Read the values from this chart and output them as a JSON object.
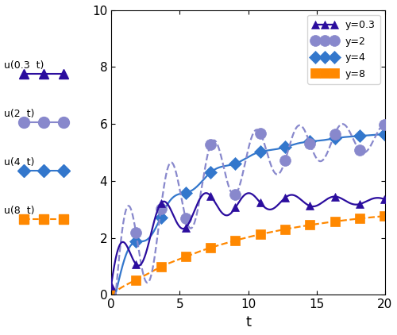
{
  "title": "",
  "xlabel": "t",
  "ylabel": "",
  "xlim": [
    0,
    20
  ],
  "ylim": [
    0,
    10
  ],
  "xticks": [
    0,
    5,
    10,
    15,
    20
  ],
  "yticks": [
    0,
    2,
    4,
    6,
    8,
    10
  ],
  "series": [
    {
      "label": "y=0.3",
      "color": "#2b0d9e",
      "linestyle": "-",
      "marker": "^",
      "markersize": 7,
      "linewidth": 1.6
    },
    {
      "label": "y=2",
      "color": "#8888cc",
      "linestyle": "--",
      "marker": "o",
      "markersize": 10,
      "linewidth": 1.6
    },
    {
      "label": "y=4",
      "color": "#3377cc",
      "linestyle": "-",
      "marker": "D",
      "markersize": 8,
      "linewidth": 1.6
    },
    {
      "label": "y=8",
      "color": "#ff8800",
      "linestyle": "--",
      "marker": "s",
      "markersize": 8,
      "linewidth": 1.6
    }
  ],
  "left_labels": [
    {
      "text": "u(0.3  t)",
      "color": "#2b0d9e",
      "marker": "^",
      "markersize": 8
    },
    {
      "text": "u(2  t)",
      "color": "#8888cc",
      "marker": "o",
      "markersize": 10
    },
    {
      "text": "u(4  t)",
      "color": "#3377cc",
      "marker": "D",
      "markersize": 8
    },
    {
      "text": "u(8  t)",
      "color": "#ff8800",
      "marker": "s",
      "markersize": 9
    }
  ]
}
